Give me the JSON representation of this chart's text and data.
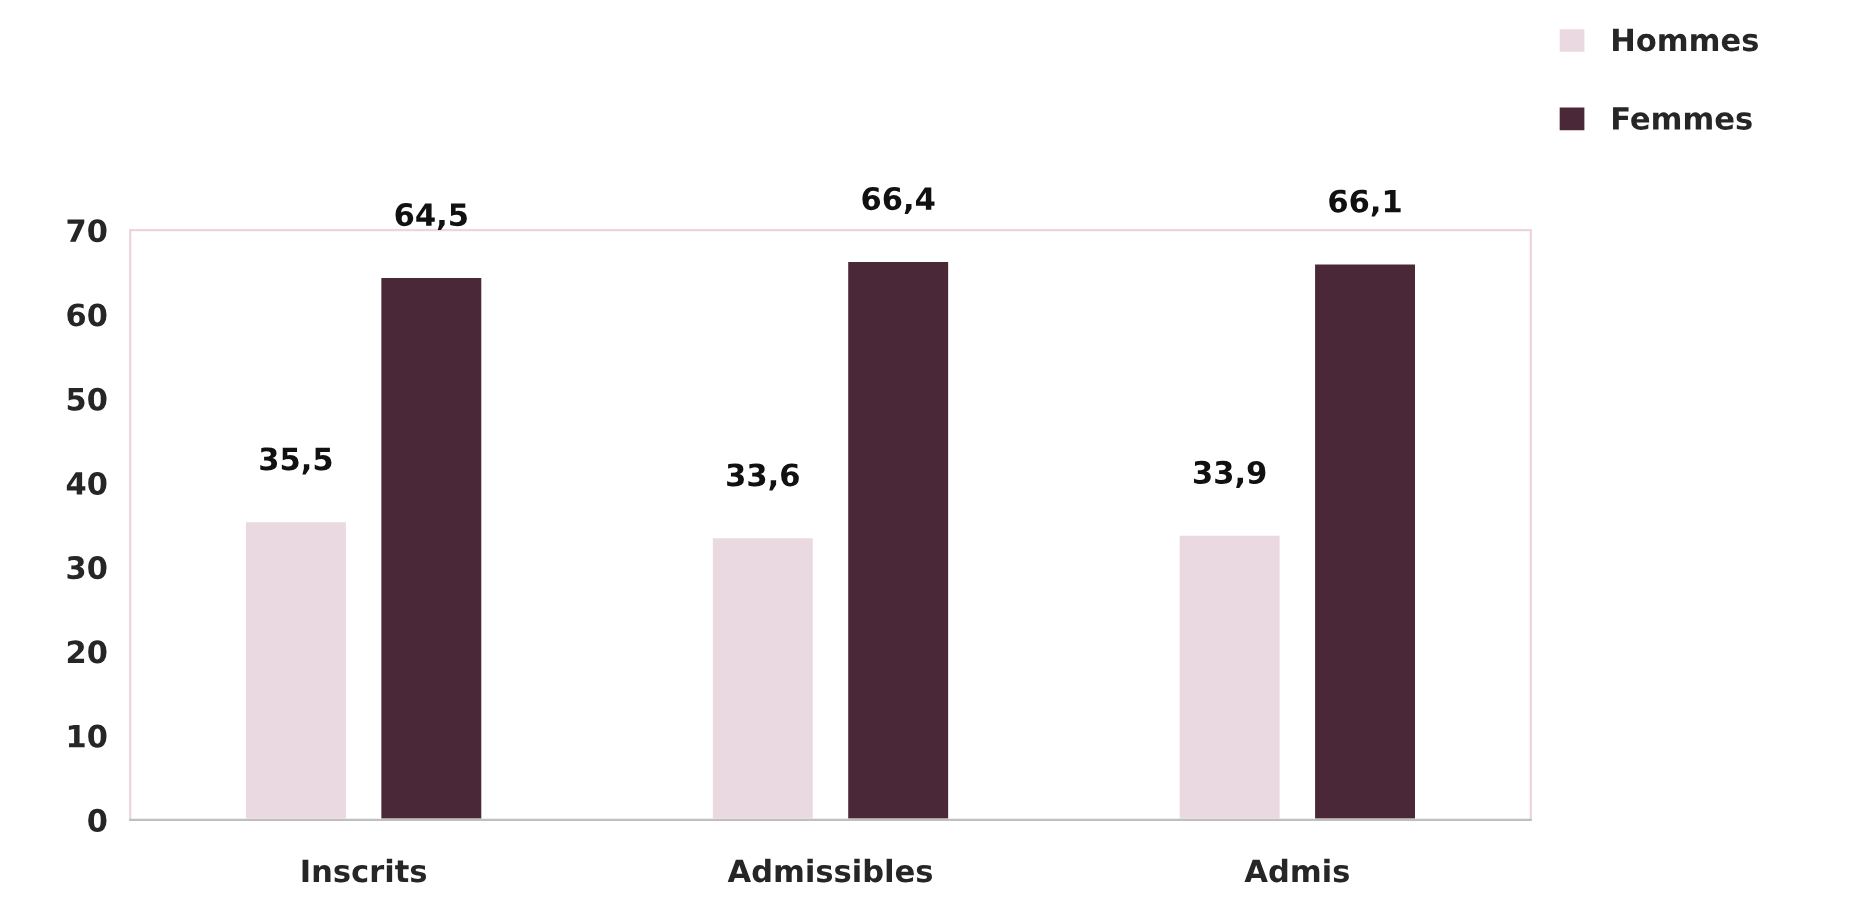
{
  "chart_data": {
    "type": "bar",
    "categories": [
      "Inscrits",
      "Admissibles",
      "Admis"
    ],
    "series": [
      {
        "name": "Hommes",
        "color": "#ead9e1",
        "values": [
          35.5,
          33.6,
          33.9
        ],
        "value_labels": [
          "35,5",
          "33,6",
          "33,9"
        ]
      },
      {
        "name": "Femmes",
        "color": "#4a2838",
        "values": [
          64.5,
          66.4,
          66.1
        ],
        "value_labels": [
          "64,5",
          "66,4",
          "66,1"
        ]
      }
    ],
    "ylim": [
      0,
      70
    ],
    "yticks": [
      0,
      10,
      20,
      30,
      40,
      50,
      60,
      70
    ],
    "grid": false,
    "legend": "top right"
  }
}
